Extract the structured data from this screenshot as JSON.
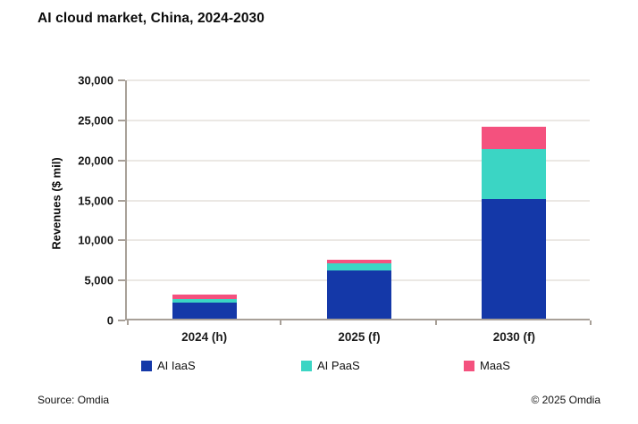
{
  "title": "AI cloud market, China, 2024-2030",
  "footer": {
    "source": "Source: Omdia",
    "copyright": "© 2025 Omdia"
  },
  "chart_data": {
    "type": "bar",
    "stacked": true,
    "title": "AI cloud market, China, 2024-2030",
    "xlabel": "",
    "ylabel": "Revenues ($ mil)",
    "ylim": [
      0,
      30000
    ],
    "grid": true,
    "legend_position": "bottom",
    "categories": [
      "2024 (h)",
      "2025 (f)",
      "2030 (f)"
    ],
    "series": [
      {
        "name": "AI IaaS",
        "color": "#1438A8",
        "values": [
          2000,
          6000,
          15000
        ]
      },
      {
        "name": "AI PaaS",
        "color": "#3BD5C4",
        "values": [
          500,
          900,
          6200
        ]
      },
      {
        "name": "MaaS",
        "color": "#F4517E",
        "values": [
          550,
          450,
          2800
        ]
      }
    ],
    "yticks": [
      {
        "value": 0,
        "label": "0"
      },
      {
        "value": 5000,
        "label": "5,000"
      },
      {
        "value": 10000,
        "label": "10,000"
      },
      {
        "value": 15000,
        "label": "15,000"
      },
      {
        "value": 20000,
        "label": "20,000"
      },
      {
        "value": 25000,
        "label": "25,000"
      },
      {
        "value": 30000,
        "label": "30,000"
      }
    ],
    "axis_color": "#A8A098",
    "grid_color": "#EBE8E4"
  }
}
